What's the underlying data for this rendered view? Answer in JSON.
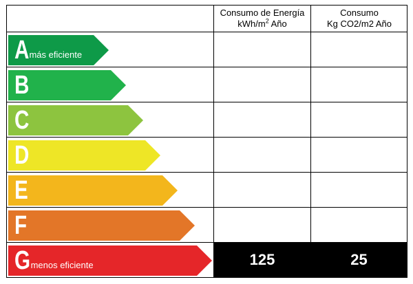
{
  "header": {
    "energy_line1": "Consumo de Energía",
    "energy_line2": "kWh/m",
    "energy_sup": "2",
    "energy_line2_after": " Año",
    "co2_line1": "Consumo",
    "co2_line2": "Kg CO2/m2 Año"
  },
  "ratings": [
    {
      "letter": "A",
      "label": "más eficiente",
      "color": "#0e9a48"
    },
    {
      "letter": "B",
      "label": "",
      "color": "#21b24b"
    },
    {
      "letter": "C",
      "label": "",
      "color": "#8dc43f"
    },
    {
      "letter": "D",
      "label": "",
      "color": "#eee626"
    },
    {
      "letter": "E",
      "label": "",
      "color": "#f3b61c"
    },
    {
      "letter": "F",
      "label": "",
      "color": "#e37628"
    },
    {
      "letter": "G",
      "label": "menos eficiente",
      "color": "#e52629"
    }
  ],
  "values": {
    "energy": "125",
    "co2": "25"
  }
}
